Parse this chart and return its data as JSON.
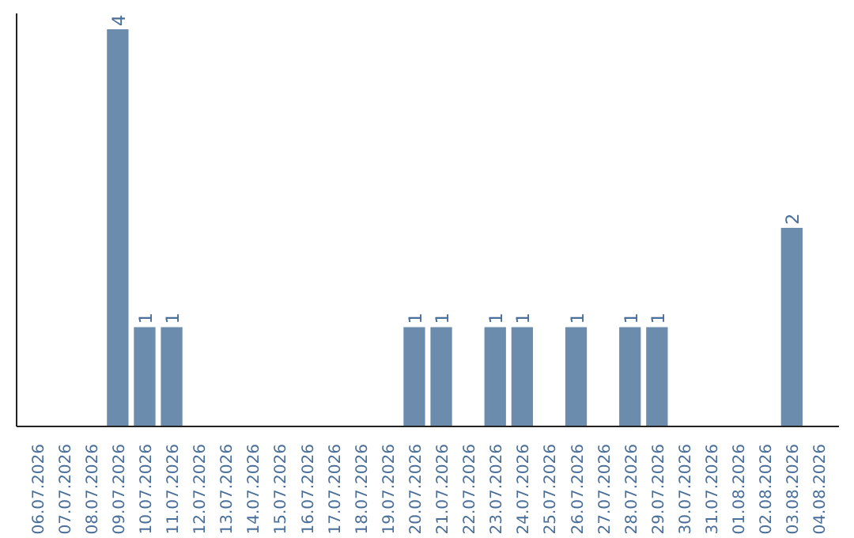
{
  "chart_data": {
    "type": "bar",
    "categories": [
      "06.07.2026",
      "07.07.2026",
      "08.07.2026",
      "09.07.2026",
      "10.07.2026",
      "11.07.2026",
      "12.07.2026",
      "13.07.2026",
      "14.07.2026",
      "15.07.2026",
      "16.07.2026",
      "17.07.2026",
      "18.07.2026",
      "19.07.2026",
      "20.07.2026",
      "21.07.2026",
      "22.07.2026",
      "23.07.2026",
      "24.07.2026",
      "25.07.2026",
      "26.07.2026",
      "27.07.2026",
      "28.07.2026",
      "29.07.2026",
      "30.07.2026",
      "31.07.2026",
      "01.08.2026",
      "02.08.2026",
      "03.08.2026",
      "04.08.2026"
    ],
    "values": [
      0,
      0,
      0,
      4,
      1,
      1,
      0,
      0,
      0,
      0,
      0,
      0,
      0,
      0,
      1,
      1,
      0,
      1,
      1,
      0,
      1,
      0,
      1,
      1,
      0,
      0,
      0,
      0,
      2,
      0
    ],
    "value_labels": [
      null,
      null,
      null,
      "4",
      "1",
      "1",
      null,
      null,
      null,
      null,
      null,
      null,
      null,
      null,
      "1",
      "1",
      null,
      "1",
      "1",
      null,
      "1",
      null,
      "1",
      "1",
      null,
      null,
      null,
      null,
      "2",
      null
    ],
    "color": "#6b8cad",
    "tick_labels": "x",
    "grid": false
  }
}
